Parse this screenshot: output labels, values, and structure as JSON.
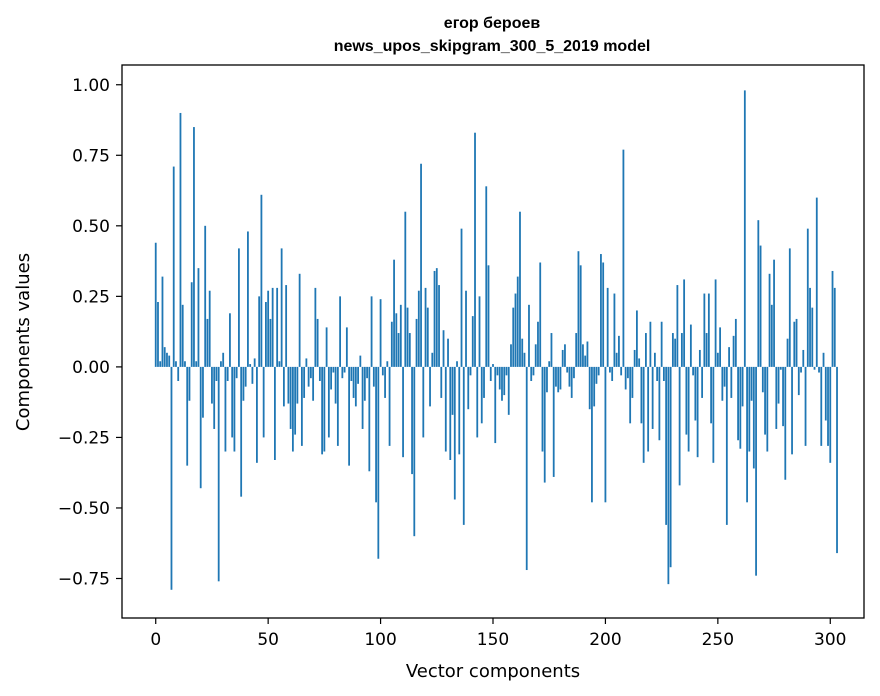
{
  "chart_data": {
    "type": "bar",
    "title_line1": "егор бероев",
    "title_line2": "news_upos_skipgram_300_5_2019 model",
    "xlabel": "Vector components",
    "ylabel": "Components values",
    "xlim": [
      -15,
      315
    ],
    "ylim": [
      -0.89,
      1.07
    ],
    "xticks": [
      0,
      50,
      100,
      150,
      200,
      250,
      300
    ],
    "xtick_labels": [
      "0",
      "50",
      "100",
      "150",
      "200",
      "250",
      "300"
    ],
    "yticks": [
      -0.75,
      -0.5,
      -0.25,
      0.0,
      0.25,
      0.5,
      0.75,
      1.0
    ],
    "ytick_labels": [
      "−0.75",
      "−0.50",
      "−0.25",
      "0.00",
      "0.25",
      "0.50",
      "0.75",
      "1.00"
    ],
    "bar_color": "#1f77b4",
    "grid": false,
    "values": [
      0.44,
      0.23,
      0.02,
      0.32,
      0.07,
      0.05,
      0.04,
      -0.79,
      0.71,
      0.02,
      -0.05,
      0.9,
      0.22,
      0.02,
      -0.35,
      -0.12,
      0.3,
      0.85,
      0.02,
      0.35,
      -0.43,
      -0.18,
      0.5,
      0.17,
      0.27,
      -0.13,
      -0.22,
      -0.05,
      -0.76,
      0.02,
      0.05,
      -0.3,
      -0.05,
      0.19,
      -0.25,
      -0.3,
      -0.04,
      0.42,
      -0.46,
      -0.12,
      -0.07,
      0.48,
      0.01,
      -0.06,
      0.03,
      -0.34,
      0.25,
      0.61,
      -0.25,
      0.23,
      0.27,
      0.17,
      0.28,
      -0.33,
      0.28,
      0.02,
      0.42,
      -0.14,
      0.29,
      -0.13,
      -0.22,
      -0.3,
      -0.24,
      -0.13,
      0.33,
      -0.28,
      -0.11,
      0.03,
      -0.07,
      -0.04,
      -0.12,
      0.28,
      0.17,
      -0.05,
      -0.31,
      -0.3,
      0.14,
      -0.25,
      -0.08,
      -0.02,
      -0.13,
      -0.28,
      0.25,
      -0.04,
      -0.02,
      0.14,
      -0.35,
      -0.05,
      -0.11,
      -0.14,
      -0.06,
      0.04,
      -0.22,
      -0.12,
      -0.04,
      -0.37,
      0.25,
      -0.07,
      -0.48,
      -0.68,
      0.24,
      -0.03,
      -0.11,
      0.02,
      -0.28,
      0.16,
      0.38,
      0.19,
      0.12,
      0.22,
      -0.32,
      0.55,
      0.21,
      0.12,
      -0.38,
      -0.6,
      0.17,
      0.27,
      0.72,
      -0.25,
      0.28,
      0.21,
      -0.14,
      0.05,
      0.34,
      0.35,
      0.29,
      -0.11,
      0.13,
      -0.3,
      0.1,
      -0.33,
      -0.17,
      -0.47,
      0.02,
      -0.31,
      0.49,
      -0.56,
      0.27,
      -0.15,
      -0.03,
      0.18,
      0.83,
      -0.25,
      0.25,
      -0.2,
      -0.11,
      0.64,
      0.36,
      -0.05,
      0.01,
      -0.27,
      -0.03,
      -0.08,
      -0.12,
      -0.1,
      -0.03,
      -0.17,
      0.08,
      0.21,
      0.26,
      0.32,
      0.55,
      0.1,
      0.05,
      -0.72,
      0.22,
      -0.05,
      -0.03,
      0.08,
      0.16,
      0.37,
      -0.3,
      -0.41,
      -0.09,
      0.02,
      0.12,
      -0.39,
      -0.07,
      -0.09,
      -0.08,
      0.06,
      0.08,
      -0.02,
      -0.07,
      -0.11,
      -0.04,
      0.12,
      0.41,
      0.36,
      0.08,
      0.04,
      0.09,
      -0.15,
      -0.48,
      -0.14,
      -0.06,
      -0.03,
      0.4,
      0.37,
      -0.48,
      0.28,
      -0.02,
      -0.05,
      0.26,
      0.05,
      0.11,
      -0.03,
      0.77,
      -0.08,
      -0.04,
      -0.2,
      -0.11,
      0.06,
      0.2,
      0.03,
      -0.2,
      -0.34,
      0.12,
      -0.3,
      0.16,
      -0.22,
      0.05,
      -0.05,
      -0.26,
      0.16,
      -0.05,
      -0.56,
      -0.77,
      -0.71,
      0.12,
      0.1,
      0.29,
      -0.42,
      0.12,
      0.31,
      -0.24,
      -0.3,
      0.15,
      -0.03,
      -0.19,
      -0.32,
      0.06,
      -0.11,
      0.26,
      0.12,
      0.26,
      -0.2,
      -0.34,
      0.31,
      0.05,
      0.14,
      -0.12,
      -0.07,
      -0.56,
      0.07,
      -0.11,
      0.11,
      0.17,
      -0.26,
      -0.29,
      -0.14,
      0.98,
      -0.48,
      -0.3,
      -0.12,
      -0.36,
      -0.74,
      0.52,
      0.43,
      -0.09,
      -0.24,
      -0.3,
      0.33,
      0.22,
      0.38,
      -0.22,
      -0.13,
      -0.01,
      -0.21,
      -0.4,
      0.1,
      0.42,
      -0.31,
      0.16,
      0.17,
      -0.1,
      -0.02,
      0.06,
      -0.28,
      0.49,
      0.28,
      0.21,
      -0.01,
      0.6,
      -0.02,
      -0.28,
      0.05,
      -0.19,
      -0.28,
      -0.34,
      0.34,
      0.28,
      -0.66
    ]
  }
}
